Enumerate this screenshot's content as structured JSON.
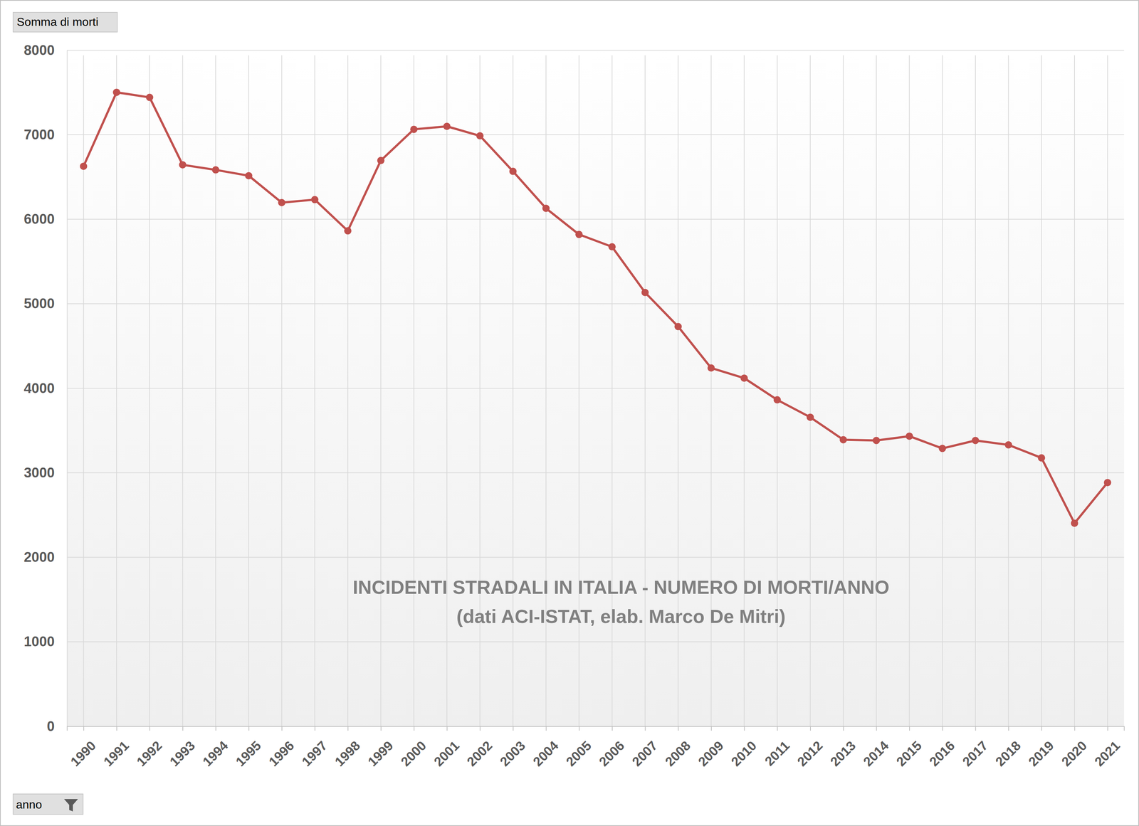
{
  "chart_data": {
    "type": "line",
    "title": "INCIDENTI STRADALI IN ITALIA - NUMERO DI MORTI/ANNO",
    "subtitle": "(dati ACI-ISTAT, elab. Marco De Mitri)",
    "y_label": "Somma di morti",
    "x_label": "anno",
    "categories": [
      "1990",
      "1991",
      "1992",
      "1993",
      "1994",
      "1995",
      "1996",
      "1997",
      "1998",
      "1999",
      "2000",
      "2001",
      "2002",
      "2003",
      "2004",
      "2005",
      "2006",
      "2007",
      "2008",
      "2009",
      "2010",
      "2011",
      "2012",
      "2013",
      "2014",
      "2015",
      "2016",
      "2017",
      "2018",
      "2019",
      "2020",
      "2021"
    ],
    "values": [
      6627,
      7502,
      7442,
      6644,
      6584,
      6515,
      6197,
      6232,
      5863,
      6695,
      7064,
      7099,
      6987,
      6567,
      6129,
      5820,
      5674,
      5133,
      4730,
      4240,
      4120,
      3863,
      3657,
      3391,
      3382,
      3433,
      3288,
      3382,
      3330,
      3176,
      2403,
      2884
    ],
    "color": "#c0504d",
    "marker": "circle",
    "ylim": [
      0,
      8000
    ],
    "yticks": [
      0,
      1000,
      2000,
      3000,
      4000,
      5000,
      6000,
      7000,
      8000
    ],
    "grid": true
  }
}
